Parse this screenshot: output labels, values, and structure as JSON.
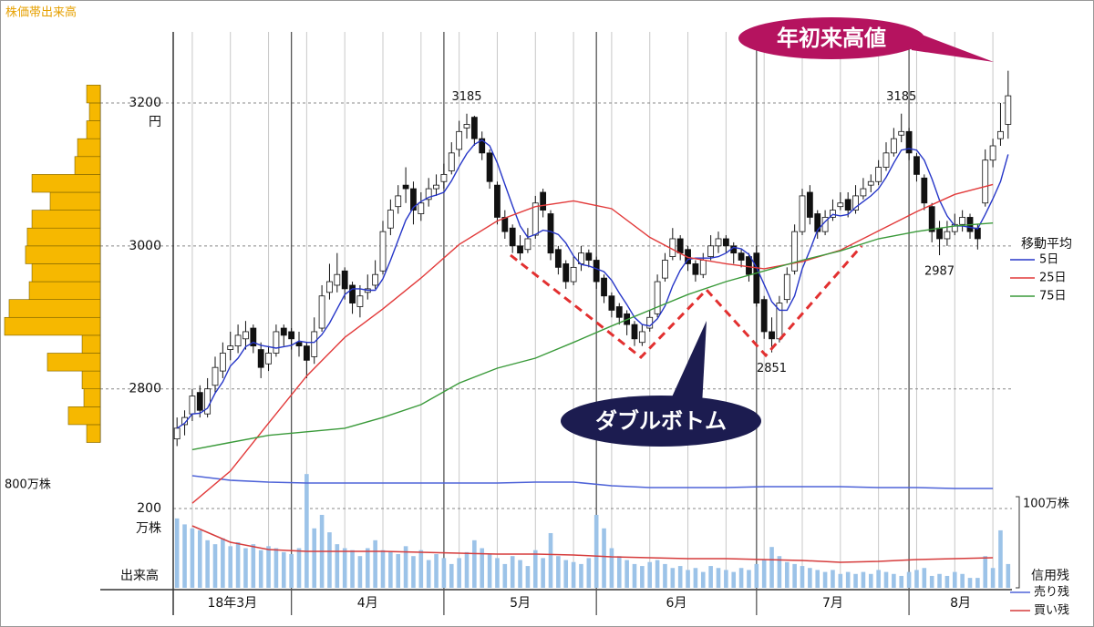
{
  "chart_data": {
    "type": "candlestick",
    "ylim": [
      2690,
      3300
    ],
    "yticks": [
      2800,
      3000,
      3200
    ],
    "y_unit": "円",
    "grid": true,
    "xlim": [
      0,
      110
    ],
    "xticks": [
      {
        "value": 0,
        "label": "18年3月"
      },
      {
        "value": 15.5,
        "label": "4月"
      },
      {
        "value": 35.5,
        "label": "5月"
      },
      {
        "value": 55.5,
        "label": "6月"
      },
      {
        "value": 76.5,
        "label": "7月"
      },
      {
        "value": 96.5,
        "label": "8月"
      }
    ],
    "open": [
      2730,
      2750,
      2765,
      2795,
      2765,
      2805,
      2825,
      2855,
      2860,
      2870,
      2885,
      2855,
      2835,
      2850,
      2885,
      2880,
      2865,
      2860,
      2845,
      2885,
      2935,
      2945,
      2965,
      2945,
      2915,
      2935,
      2945,
      2965,
      3025,
      3055,
      3085,
      3080,
      3045,
      3065,
      3080,
      3090,
      3105,
      3135,
      3165,
      3180,
      3150,
      3130,
      3085,
      3040,
      3025,
      3000,
      2995,
      3015,
      3075,
      3045,
      2995,
      2975,
      2950,
      2975,
      2990,
      2980,
      2955,
      2930,
      2915,
      2905,
      2890,
      2865,
      2885,
      2905,
      2955,
      2985,
      3010,
      2995,
      2975,
      2960,
      2985,
      3000,
      3010,
      3000,
      2990,
      2985,
      2990,
      2925,
      2880,
      2870,
      2925,
      2965,
      3020,
      3075,
      3045,
      3020,
      3040,
      3055,
      3065,
      3050,
      3070,
      3085,
      3090,
      3110,
      3130,
      3155,
      3160,
      3125,
      3095,
      3055,
      3025,
      3010,
      3020,
      3030,
      3040,
      3025,
      3060,
      3120,
      3150,
      3170
    ],
    "high": [
      2760,
      2770,
      2800,
      2805,
      2815,
      2845,
      2865,
      2880,
      2890,
      2895,
      2890,
      2865,
      2860,
      2890,
      2890,
      2885,
      2880,
      2865,
      2900,
      2945,
      2975,
      2990,
      2970,
      2950,
      2945,
      2960,
      2980,
      3035,
      3065,
      3085,
      3110,
      3090,
      3075,
      3095,
      3100,
      3115,
      3145,
      3175,
      3185,
      3182,
      3160,
      3135,
      3090,
      3050,
      3030,
      3015,
      3025,
      3070,
      3080,
      3050,
      3000,
      2980,
      2985,
      3000,
      2995,
      2985,
      2960,
      2935,
      2920,
      2910,
      2895,
      2890,
      2910,
      2960,
      2990,
      3025,
      3015,
      3000,
      2980,
      2990,
      3015,
      3020,
      3015,
      3005,
      2995,
      2990,
      3000,
      2930,
      2900,
      2930,
      2970,
      3030,
      3080,
      3085,
      3050,
      3050,
      3065,
      3075,
      3075,
      3085,
      3095,
      3100,
      3120,
      3145,
      3165,
      3185,
      3165,
      3130,
      3100,
      3060,
      3035,
      3035,
      3045,
      3050,
      3045,
      3030,
      3135,
      3150,
      3200,
      3245
    ],
    "low": [
      2720,
      2735,
      2755,
      2760,
      2760,
      2795,
      2815,
      2840,
      2850,
      2855,
      2850,
      2815,
      2825,
      2845,
      2860,
      2855,
      2845,
      2815,
      2835,
      2880,
      2925,
      2935,
      2925,
      2905,
      2900,
      2925,
      2940,
      2960,
      3015,
      3045,
      3060,
      3030,
      3035,
      3055,
      3070,
      3080,
      3100,
      3125,
      3150,
      3140,
      3120,
      3080,
      3030,
      3010,
      2990,
      2980,
      2990,
      3010,
      3040,
      2980,
      2960,
      2940,
      2945,
      2965,
      2970,
      2940,
      2920,
      2900,
      2890,
      2875,
      2860,
      2860,
      2880,
      2900,
      2950,
      2980,
      2980,
      2965,
      2950,
      2955,
      2980,
      2990,
      2990,
      2975,
      2970,
      2950,
      2915,
      2870,
      2851,
      2865,
      2920,
      2960,
      3015,
      3030,
      3010,
      3015,
      3035,
      3050,
      3040,
      3045,
      3065,
      3075,
      3085,
      3105,
      3125,
      3145,
      3120,
      3090,
      3050,
      3005,
      2987,
      3000,
      3015,
      3020,
      3010,
      2995,
      3055,
      3110,
      3140,
      3150
    ],
    "close": [
      2745,
      2760,
      2790,
      2770,
      2800,
      2830,
      2850,
      2860,
      2875,
      2880,
      2860,
      2830,
      2850,
      2880,
      2875,
      2870,
      2860,
      2840,
      2880,
      2930,
      2950,
      2960,
      2940,
      2920,
      2930,
      2940,
      2960,
      3020,
      3050,
      3070,
      3080,
      3050,
      3060,
      3080,
      3085,
      3100,
      3130,
      3160,
      3170,
      3150,
      3130,
      3090,
      3040,
      3020,
      3000,
      2990,
      3010,
      3060,
      3050,
      2990,
      2970,
      2950,
      2970,
      2990,
      2980,
      2950,
      2930,
      2910,
      2900,
      2890,
      2870,
      2880,
      2900,
      2950,
      2980,
      3010,
      2990,
      2975,
      2960,
      2980,
      3000,
      3010,
      3000,
      2990,
      2980,
      2960,
      2920,
      2880,
      2870,
      2920,
      2960,
      3020,
      3070,
      3040,
      3020,
      3040,
      3050,
      3060,
      3050,
      3070,
      3080,
      3090,
      3110,
      3130,
      3150,
      3160,
      3130,
      3100,
      3060,
      3020,
      3010,
      3020,
      3030,
      3040,
      3020,
      3010,
      3120,
      3140,
      3160,
      3210
    ],
    "legend_title": "移動平均",
    "series": [
      {
        "name": "5日",
        "color": "#2636c8",
        "values": [
          2745,
          2752,
          2765,
          2766,
          2773,
          2794,
          2810,
          2832,
          2843,
          2859,
          2865,
          2861,
          2859,
          2857,
          2859,
          2861,
          2867,
          2865,
          2865,
          2876,
          2892,
          2912,
          2932,
          2940,
          2940,
          2938,
          2938,
          2954,
          2980,
          3008,
          3036,
          3054,
          3062,
          3068,
          3071,
          3075,
          3091,
          3111,
          3129,
          3142,
          3148,
          3140,
          3116,
          3086,
          3056,
          3028,
          3012,
          3016,
          3022,
          3020,
          3016,
          3004,
          2986,
          2974,
          2972,
          2968,
          2964,
          2952,
          2934,
          2918,
          2900,
          2890,
          2888,
          2898,
          2916,
          2944,
          2966,
          2981,
          2983,
          2983,
          2983,
          2985,
          2990,
          2998,
          2996,
          2988,
          2970,
          2946,
          2922,
          2910,
          2910,
          2930,
          2968,
          2994,
          3022,
          3034,
          3044,
          3042,
          3044,
          3054,
          3062,
          3070,
          3080,
          3096,
          3116,
          3134,
          3136,
          3134,
          3120,
          3094,
          3064,
          3042,
          3028,
          3028,
          3026,
          3024,
          3044,
          3066,
          3090,
          3128
        ]
      },
      {
        "name": "25日",
        "color": "#e23a3a",
        "values": [
          2640,
          2685,
          2752,
          2818,
          2872,
          2912,
          2955,
          3002,
          3035,
          3055,
          3063,
          3052,
          3012,
          2984,
          2975,
          2968,
          2978,
          2994,
          3021,
          3048,
          3072,
          3086
        ]
      },
      {
        "name": "75日",
        "color": "#3a9a3a",
        "values": [
          2715,
          2725,
          2735,
          2740,
          2745,
          2760,
          2778,
          2808,
          2829,
          2843,
          2865,
          2888,
          2910,
          2932,
          2950,
          2965,
          2980,
          2993,
          3010,
          3020,
          3028,
          3032
        ]
      }
    ],
    "peak_labels": [
      {
        "day": 38,
        "value": 3185
      },
      {
        "day": 78,
        "value": 2851
      },
      {
        "day": 95,
        "value": 3185
      },
      {
        "day": 100,
        "value": 2987
      }
    ],
    "annotations": [
      "年初来高値",
      "ダブルボトム"
    ],
    "volume": {
      "label": "出来高",
      "unit": "万株",
      "ylim": [
        0,
        300
      ],
      "yticks": [
        200
      ],
      "color": "#9cc3e8",
      "values": [
        175,
        160,
        150,
        145,
        120,
        110,
        125,
        105,
        115,
        100,
        110,
        95,
        105,
        100,
        90,
        85,
        100,
        287,
        150,
        184,
        140,
        110,
        100,
        95,
        80,
        100,
        120,
        95,
        90,
        85,
        105,
        80,
        95,
        70,
        85,
        75,
        60,
        75,
        90,
        120,
        100,
        85,
        75,
        60,
        80,
        70,
        55,
        95,
        75,
        138,
        80,
        70,
        65,
        60,
        75,
        184,
        150,
        100,
        80,
        70,
        60,
        55,
        65,
        70,
        60,
        50,
        55,
        45,
        50,
        40,
        55,
        50,
        45,
        40,
        50,
        45,
        60,
        70,
        103,
        80,
        65,
        60,
        55,
        50,
        45,
        40,
        45,
        35,
        40,
        35,
        40,
        35,
        45,
        40,
        35,
        30,
        40,
        45,
        50,
        30,
        35,
        30,
        40,
        35,
        25,
        25,
        80,
        50,
        145,
        60
      ]
    },
    "margin": {
      "title": "信用残",
      "ylim": [
        0,
        130
      ],
      "yticks": [
        {
          "value": 100,
          "label": "100万株"
        }
      ],
      "series": [
        {
          "name": "売り残",
          "color": "#4e63d8",
          "values": [
            123,
            118,
            116,
            115,
            115,
            115,
            115,
            115,
            115,
            116,
            116,
            112,
            110,
            110,
            110,
            111,
            111,
            111,
            110,
            110,
            109,
            109
          ]
        },
        {
          "name": "買い残",
          "color": "#d63c3c",
          "values": [
            68,
            50,
            42,
            40,
            40,
            40,
            39,
            38,
            37,
            37,
            36,
            34,
            33,
            32,
            32,
            31,
            30,
            28,
            29,
            31,
            32,
            33
          ]
        }
      ]
    },
    "price_volume": {
      "title": "株価帯出来高",
      "color": "#f6b800",
      "bins": [
        2725,
        2750,
        2775,
        2800,
        2825,
        2850,
        2875,
        2900,
        2925,
        2950,
        2975,
        3000,
        3025,
        3050,
        3075,
        3100,
        3125,
        3150,
        3175,
        3200,
        3225
      ],
      "values": [
        114,
        267,
        137,
        152,
        442,
        152,
        800,
        762,
        594,
        571,
        625,
        610,
        571,
        419,
        571,
        213,
        190,
        114,
        91,
        114
      ],
      "xlim": [
        800,
        0
      ],
      "xticks": [
        {
          "value": 800,
          "label": "800万株"
        }
      ]
    }
  }
}
